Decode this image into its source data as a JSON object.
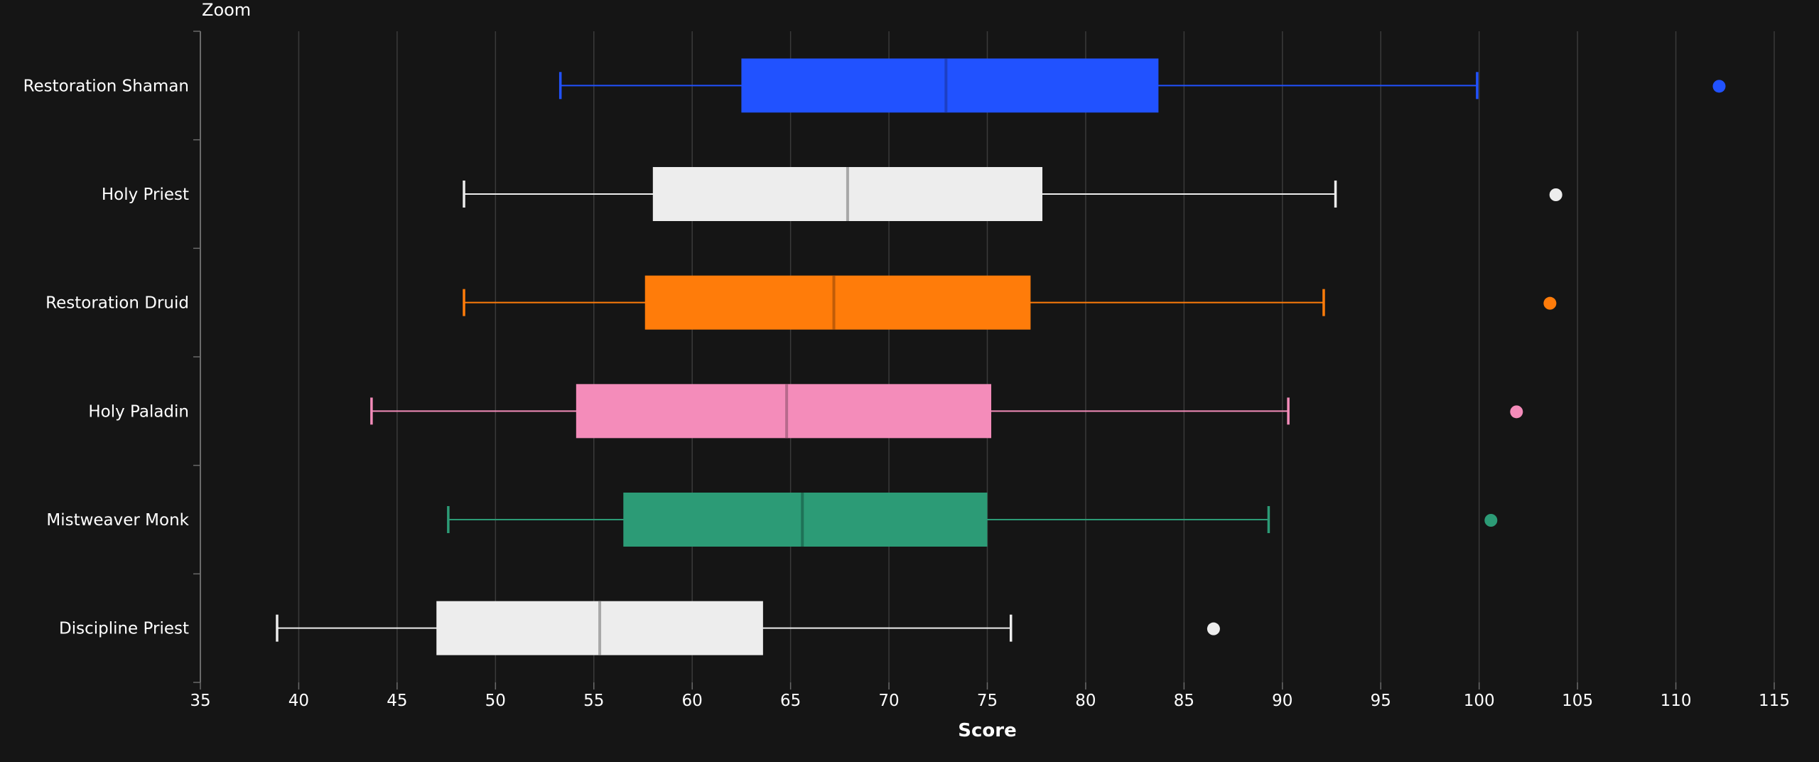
{
  "toolbar": {
    "zoom_label": "Zoom"
  },
  "chart_data": {
    "type": "box",
    "title": "",
    "xlabel": "Score",
    "ylabel": "",
    "xlim": [
      35,
      116
    ],
    "x_ticks": [
      35,
      40,
      45,
      50,
      55,
      60,
      65,
      70,
      75,
      80,
      85,
      90,
      95,
      100,
      105,
      110,
      115
    ],
    "grid": "vertical",
    "orientation": "horizontal",
    "categories": [
      "Restoration Shaman",
      "Holy Priest",
      "Restoration Druid",
      "Holy Paladin",
      "Mistweaver Monk",
      "Discipline Priest"
    ],
    "series": [
      {
        "category": "Restoration Shaman",
        "color": "#2152ff",
        "median_color": "#1d3fc4",
        "whisker_low": 53.3,
        "q1": 62.5,
        "median": 72.9,
        "q3": 83.7,
        "whisker_high": 99.9,
        "outliers": [
          112.2
        ]
      },
      {
        "category": "Holy Priest",
        "color": "#ededed",
        "median_color": "#a8a8a8",
        "whisker_low": 48.4,
        "q1": 58.0,
        "median": 67.9,
        "q3": 77.8,
        "whisker_high": 92.7,
        "outliers": [
          103.9
        ]
      },
      {
        "category": "Restoration Druid",
        "color": "#ff7c0a",
        "median_color": "#c05c08",
        "whisker_low": 48.4,
        "q1": 57.6,
        "median": 67.2,
        "q3": 77.2,
        "whisker_high": 92.1,
        "outliers": [
          103.6
        ]
      },
      {
        "category": "Holy Paladin",
        "color": "#f48cba",
        "median_color": "#b86a8c",
        "whisker_low": 43.7,
        "q1": 54.1,
        "median": 64.8,
        "q3": 75.2,
        "whisker_high": 90.3,
        "outliers": [
          101.9
        ]
      },
      {
        "category": "Mistweaver Monk",
        "color": "#2c9b76",
        "median_color": "#1f7257",
        "whisker_low": 47.6,
        "q1": 56.5,
        "median": 65.6,
        "q3": 75.0,
        "whisker_high": 89.3,
        "outliers": [
          100.6
        ]
      },
      {
        "category": "Discipline Priest",
        "color": "#ededed",
        "median_color": "#a8a8a8",
        "whisker_low": 38.9,
        "q1": 47.0,
        "median": 55.3,
        "q3": 63.6,
        "whisker_high": 76.2,
        "outliers": [
          86.5
        ]
      }
    ]
  }
}
